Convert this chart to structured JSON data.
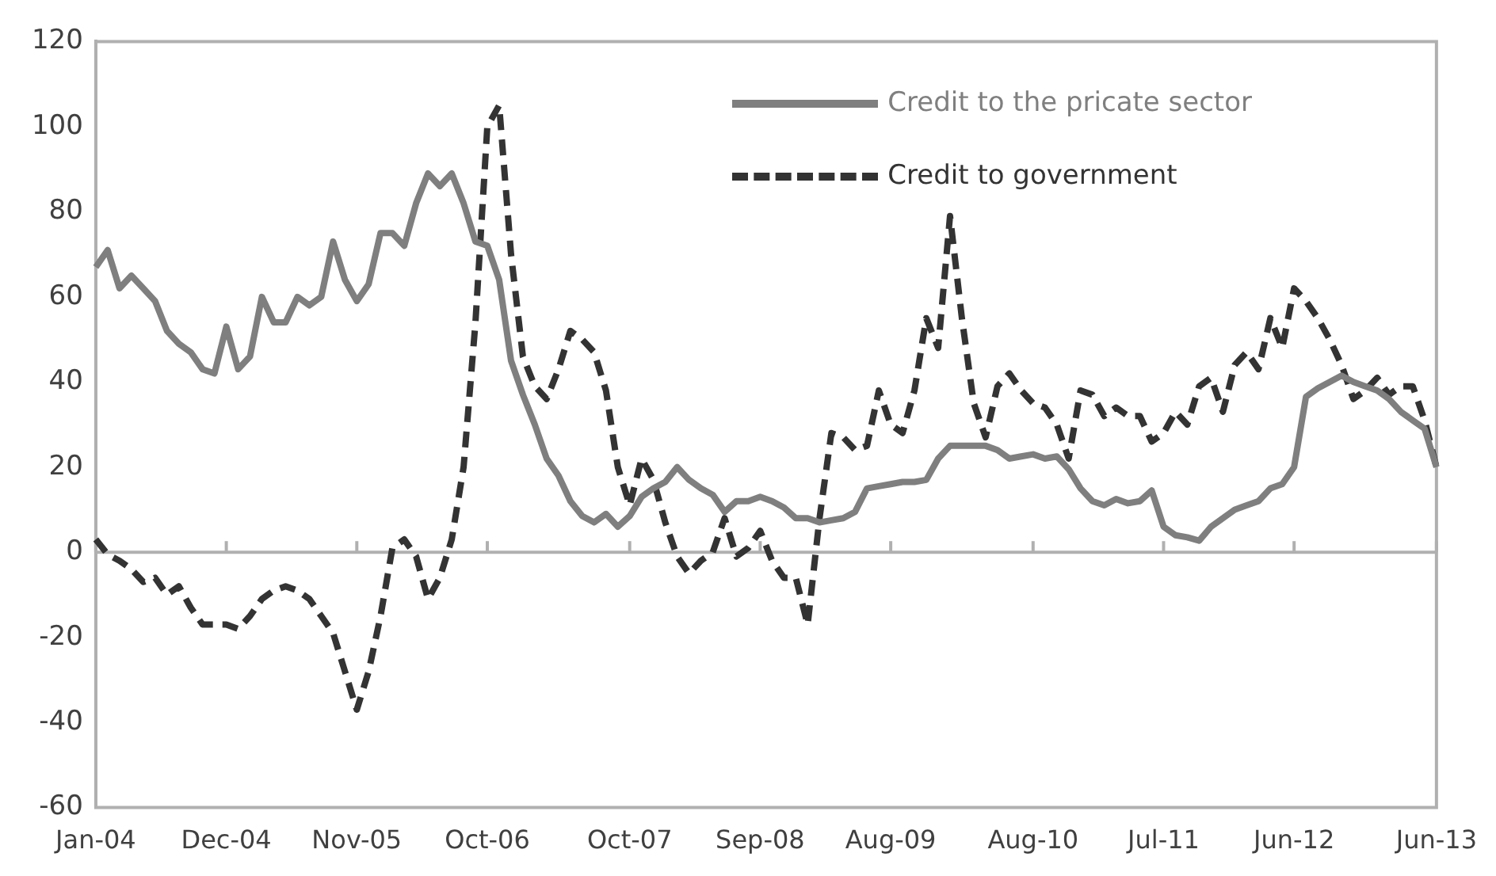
{
  "chart_data": {
    "type": "line",
    "categories": [
      "Jan-04",
      null,
      null,
      null,
      null,
      null,
      null,
      null,
      null,
      null,
      null,
      "Dec-04",
      null,
      null,
      null,
      null,
      null,
      null,
      null,
      null,
      null,
      null,
      "Nov-05",
      null,
      null,
      null,
      null,
      null,
      null,
      null,
      null,
      null,
      null,
      "Oct-06",
      null,
      null,
      null,
      null,
      null,
      null,
      null,
      null,
      null,
      null,
      null,
      "Oct-07",
      null,
      null,
      null,
      null,
      null,
      null,
      null,
      null,
      null,
      null,
      "Sep-08",
      null,
      null,
      null,
      null,
      null,
      null,
      null,
      null,
      null,
      null,
      "Aug-09",
      null,
      null,
      null,
      null,
      null,
      null,
      null,
      null,
      null,
      null,
      null,
      "Aug-10",
      null,
      null,
      null,
      null,
      null,
      null,
      null,
      null,
      null,
      null,
      "Jul-11",
      null,
      null,
      null,
      null,
      null,
      null,
      null,
      null,
      null,
      null,
      "Jun-12",
      null,
      null,
      null,
      null,
      null,
      null,
      null,
      null,
      null,
      null,
      null,
      "Jun-13"
    ],
    "series": [
      {
        "name": "Credit to the pricate sector",
        "color": "#7f7f7f",
        "line_style": "solid",
        "values": [
          67,
          71,
          62,
          65,
          62,
          59,
          52,
          49,
          47,
          43,
          42,
          53,
          43,
          46,
          60,
          54,
          54,
          60,
          58,
          60,
          73,
          64,
          59,
          63,
          75,
          75,
          72,
          82,
          89,
          86,
          89,
          82,
          73,
          72,
          64,
          45,
          37,
          30,
          22,
          18,
          12,
          8.5,
          7,
          9,
          6,
          8.5,
          13,
          15,
          16.5,
          20,
          17,
          15,
          13.5,
          9.5,
          12,
          12,
          13,
          12,
          10.5,
          8,
          8,
          7,
          7.5,
          8,
          9.5,
          15,
          15.5,
          16,
          16.5,
          16.5,
          17,
          22,
          25,
          25,
          25,
          25,
          24,
          22,
          22.5,
          23,
          22,
          22.5,
          19.5,
          15,
          12,
          11,
          12.5,
          11.5,
          12,
          14.5,
          6,
          4,
          3.5,
          2.7,
          6,
          8,
          10,
          11,
          12,
          15,
          16,
          20,
          36.5,
          38.5,
          40,
          41.5,
          40,
          39,
          38,
          36,
          33,
          31,
          29,
          20
        ]
      },
      {
        "name": "Credit to government",
        "color": "#333333",
        "line_style": "dashed",
        "values": [
          3,
          -0.5,
          -2,
          -4,
          -7,
          -6,
          -10,
          -8,
          -13,
          -17,
          -17,
          -17,
          -18,
          -15,
          -11,
          -9,
          -8,
          -9,
          -11,
          -15,
          -19,
          -28,
          -37,
          -28,
          -15,
          1,
          3,
          -1,
          -11,
          -6,
          3,
          20,
          54,
          100,
          105,
          70,
          46,
          39,
          36,
          43,
          52,
          50,
          47,
          38,
          20,
          11,
          22,
          17,
          7,
          -1,
          -5,
          -2,
          0,
          8,
          -1,
          1,
          5,
          -2,
          -6,
          -6,
          -17,
          8,
          28,
          27,
          24,
          25,
          38,
          30,
          28,
          38,
          55,
          48,
          79,
          55,
          35,
          27,
          39,
          42,
          38,
          35,
          34,
          30,
          22,
          38,
          37,
          32,
          34,
          32,
          32,
          26,
          28,
          33,
          30,
          39,
          41,
          33,
          44,
          47,
          43,
          55,
          48,
          62,
          59,
          55,
          50,
          44,
          36,
          38,
          41,
          37,
          39,
          39,
          31,
          20
        ]
      }
    ],
    "ylim": [
      -60,
      120
    ],
    "yticks": [
      -60,
      -40,
      -20,
      0,
      20,
      40,
      60,
      80,
      100,
      120
    ],
    "legend": "top right",
    "marker": "none"
  }
}
